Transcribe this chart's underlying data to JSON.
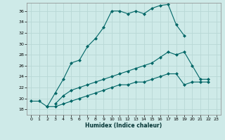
{
  "xlabel": "Humidex (Indice chaleur)",
  "background_color": "#ceeae8",
  "grid_color": "#b8d8d5",
  "line_color": "#006666",
  "xlim": [
    -0.5,
    23.5
  ],
  "ylim": [
    17.0,
    37.5
  ],
  "yticks": [
    18,
    20,
    22,
    24,
    26,
    28,
    30,
    32,
    34,
    36
  ],
  "xticks": [
    0,
    1,
    2,
    3,
    4,
    5,
    6,
    7,
    8,
    9,
    10,
    11,
    12,
    13,
    14,
    15,
    16,
    17,
    18,
    19,
    20,
    21,
    22,
    23
  ],
  "line1_x": [
    0,
    1,
    2,
    3,
    4,
    5,
    6,
    7,
    8,
    9,
    10,
    11,
    12,
    13,
    14,
    15,
    16,
    17,
    18,
    19
  ],
  "line1_y": [
    19.5,
    19.5,
    18.5,
    21.0,
    23.5,
    26.5,
    27.0,
    29.5,
    31.0,
    33.0,
    36.0,
    36.0,
    35.5,
    36.0,
    35.5,
    36.5,
    37.0,
    37.2,
    33.5,
    31.5
  ],
  "line2_x": [
    3,
    4,
    5,
    6,
    7,
    8,
    9,
    10,
    11,
    12,
    13,
    14,
    15,
    16,
    17,
    18,
    19,
    20,
    21,
    22
  ],
  "line2_y": [
    19.0,
    20.5,
    21.5,
    22.0,
    22.5,
    23.0,
    23.5,
    24.0,
    24.5,
    25.0,
    25.5,
    26.0,
    26.5,
    27.5,
    28.5,
    28.0,
    28.5,
    26.0,
    23.5,
    23.5
  ],
  "line3_x": [
    2,
    3,
    4,
    5,
    6,
    7,
    8,
    9,
    10,
    11,
    12,
    13,
    14,
    15,
    16,
    17,
    18,
    19,
    20,
    21,
    22
  ],
  "line3_y": [
    18.5,
    18.5,
    19.0,
    19.5,
    20.0,
    20.5,
    21.0,
    21.5,
    22.0,
    22.5,
    22.5,
    23.0,
    23.0,
    23.5,
    24.0,
    24.5,
    24.5,
    22.5,
    23.0,
    23.0,
    23.0
  ]
}
